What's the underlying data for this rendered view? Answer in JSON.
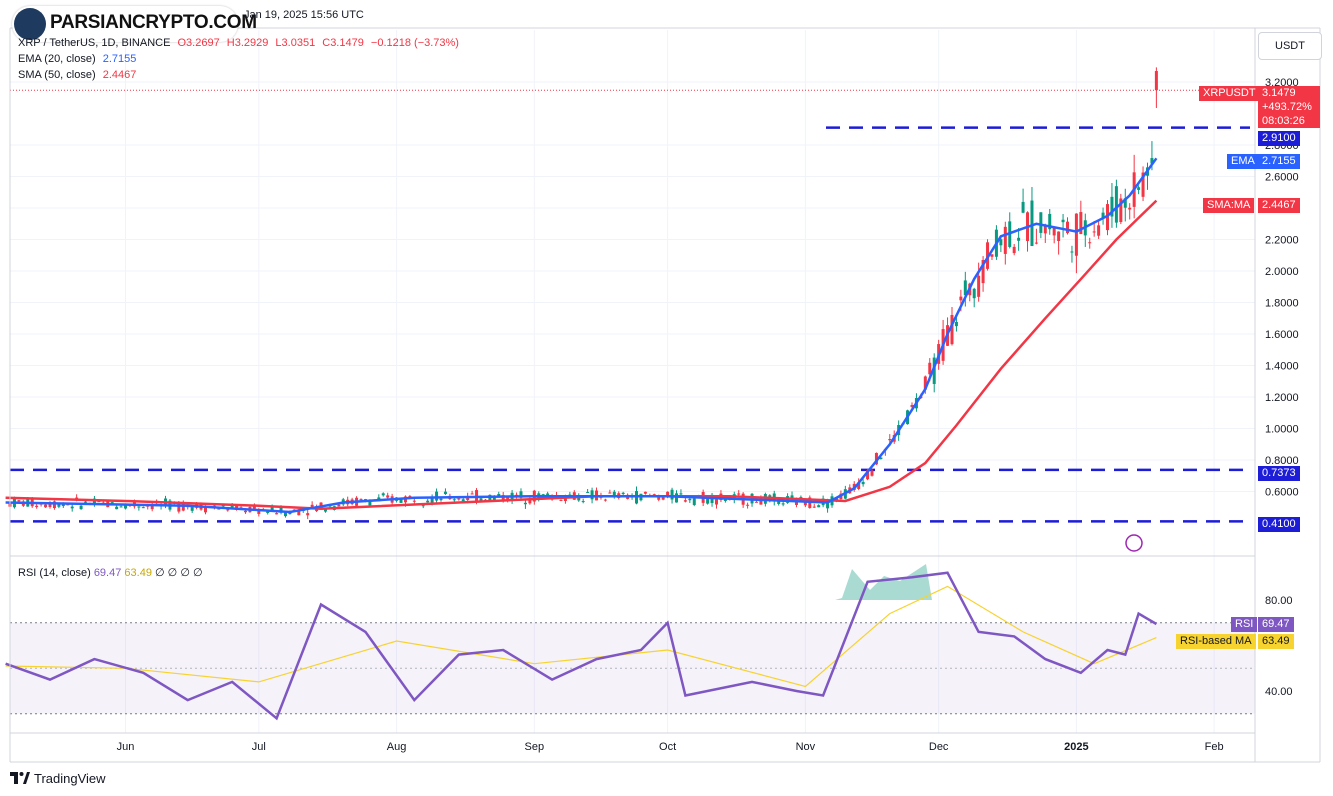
{
  "watermark": "PARSIANCRYPTO.COM",
  "header": {
    "published": "Jan 19, 2025 15:56 UTC",
    "symbol": "XRP / TetherUS, 1D, BINANCE",
    "open": "O3.2697",
    "high": "H3.2929",
    "low": "L3.0351",
    "close": "C3.1479",
    "change": "−0.1218 (−3.73%)",
    "ema_label": "EMA (20, close)",
    "ema_value": "2.7155",
    "sma_label": "SMA (50, close)",
    "sma_value": "2.4467"
  },
  "currency_button": "USDT",
  "price_tag": {
    "symbol": "XRPUSDT",
    "price": "3.1479",
    "change": "+493.72%",
    "countdown": "08:03:26"
  },
  "level_tags": {
    "resistance": "2.9100",
    "upper_range": "0.7373",
    "lower_range": "0.4100"
  },
  "ema_tag": {
    "label": "EMA",
    "value": "2.7155"
  },
  "sma_tag": {
    "label": "SMA:MA",
    "value": "2.4467"
  },
  "rsi": {
    "label": "RSI (14, close)",
    "value": "69.47",
    "ma_value": "63.49",
    "extra": [
      "∅",
      "∅",
      "∅",
      "∅"
    ],
    "tag_label": "RSI",
    "ma_tag_label": "RSI-based MA"
  },
  "footer": "TradingView",
  "colors": {
    "up": "#089981",
    "down": "#f23645",
    "ema": "#2962ff",
    "sma": "#f23645",
    "rsi": "#7e57c2",
    "rsi_ma": "#f7d32f",
    "levels": "#1d1dd8"
  },
  "chart_data": [
    {
      "type": "candlestick",
      "title": "XRP / TetherUS, 1D, BINANCE",
      "x_ticks": [
        "Jun",
        "Jul",
        "Aug",
        "Sep",
        "Oct",
        "Nov",
        "Dec",
        "2025",
        "Feb"
      ],
      "y_ticks": [
        "0.6000",
        "0.8000",
        "1.0000",
        "1.2000",
        "1.4000",
        "1.6000",
        "1.8000",
        "2.0000",
        "2.2000",
        "2.4000",
        "2.6000",
        "2.8000",
        "3.2000"
      ],
      "ylim": [
        0.4,
        3.4
      ],
      "horizontal_levels": [
        2.91,
        0.7373,
        0.41
      ],
      "series": [
        {
          "name": "EMA (20, close)",
          "last": 2.7155,
          "points": [
            [
              "2024-05-05",
              0.53
            ],
            [
              "2024-06-15",
              0.51
            ],
            [
              "2024-07-08",
              0.47
            ],
            [
              "2024-07-20",
              0.53
            ],
            [
              "2024-08-05",
              0.56
            ],
            [
              "2024-09-01",
              0.57
            ],
            [
              "2024-10-01",
              0.57
            ],
            [
              "2024-11-06",
              0.53
            ],
            [
              "2024-11-12",
              0.62
            ],
            [
              "2024-11-20",
              0.9
            ],
            [
              "2024-11-28",
              1.25
            ],
            [
              "2024-12-03",
              1.6
            ],
            [
              "2024-12-09",
              1.95
            ],
            [
              "2024-12-15",
              2.22
            ],
            [
              "2024-12-23",
              2.3
            ],
            [
              "2025-01-01",
              2.25
            ],
            [
              "2025-01-08",
              2.35
            ],
            [
              "2025-01-13",
              2.48
            ],
            [
              "2025-01-19",
              2.7155
            ]
          ]
        },
        {
          "name": "SMA (50, close)",
          "last": 2.4467,
          "points": [
            [
              "2024-05-05",
              0.56
            ],
            [
              "2024-06-01",
              0.54
            ],
            [
              "2024-07-01",
              0.51
            ],
            [
              "2024-07-15",
              0.49
            ],
            [
              "2024-08-15",
              0.53
            ],
            [
              "2024-09-15",
              0.57
            ],
            [
              "2024-10-15",
              0.57
            ],
            [
              "2024-11-10",
              0.54
            ],
            [
              "2024-11-20",
              0.63
            ],
            [
              "2024-11-28",
              0.78
            ],
            [
              "2024-12-05",
              1.02
            ],
            [
              "2024-12-15",
              1.38
            ],
            [
              "2024-12-25",
              1.7
            ],
            [
              "2025-01-03",
              1.98
            ],
            [
              "2025-01-10",
              2.2
            ],
            [
              "2025-01-19",
              2.4467
            ]
          ]
        }
      ],
      "ohlc_last": {
        "open": 3.2697,
        "high": 3.2929,
        "low": 3.0351,
        "close": 3.1479
      }
    },
    {
      "type": "line",
      "title": "RSI (14, close)",
      "y_ticks": [
        "80.00",
        "40.00"
      ],
      "ylim": [
        25,
        100
      ],
      "bands": [
        70,
        30
      ],
      "series": [
        {
          "name": "RSI",
          "last": 69.47,
          "points": [
            [
              "2024-05-05",
              52
            ],
            [
              "2024-05-15",
              45
            ],
            [
              "2024-05-25",
              54
            ],
            [
              "2024-06-05",
              48
            ],
            [
              "2024-06-15",
              36
            ],
            [
              "2024-06-25",
              44
            ],
            [
              "2024-07-05",
              28
            ],
            [
              "2024-07-15",
              78
            ],
            [
              "2024-07-25",
              66
            ],
            [
              "2024-08-05",
              36
            ],
            [
              "2024-08-15",
              56
            ],
            [
              "2024-08-25",
              58
            ],
            [
              "2024-09-05",
              45
            ],
            [
              "2024-09-15",
              54
            ],
            [
              "2024-09-25",
              58
            ],
            [
              "2024-10-01",
              70
            ],
            [
              "2024-10-05",
              38
            ],
            [
              "2024-10-20",
              44
            ],
            [
              "2024-10-30",
              40
            ],
            [
              "2024-11-05",
              38
            ],
            [
              "2024-11-15",
              88
            ],
            [
              "2024-11-25",
              90
            ],
            [
              "2024-12-03",
              92
            ],
            [
              "2024-12-10",
              66
            ],
            [
              "2024-12-18",
              64
            ],
            [
              "2024-12-25",
              54
            ],
            [
              "2025-01-02",
              48
            ],
            [
              "2025-01-08",
              58
            ],
            [
              "2025-01-12",
              56
            ],
            [
              "2025-01-15",
              74
            ],
            [
              "2025-01-19",
              69.47
            ]
          ]
        },
        {
          "name": "RSI-based MA",
          "last": 63.49,
          "points": [
            [
              "2024-05-05",
              51
            ],
            [
              "2024-06-01",
              50
            ],
            [
              "2024-07-01",
              44
            ],
            [
              "2024-08-01",
              62
            ],
            [
              "2024-09-01",
              52
            ],
            [
              "2024-10-01",
              58
            ],
            [
              "2024-11-01",
              42
            ],
            [
              "2024-11-20",
              74
            ],
            [
              "2024-12-03",
              86
            ],
            [
              "2024-12-20",
              66
            ],
            [
              "2025-01-05",
              52
            ],
            [
              "2025-01-19",
              63.49
            ]
          ]
        }
      ]
    }
  ]
}
